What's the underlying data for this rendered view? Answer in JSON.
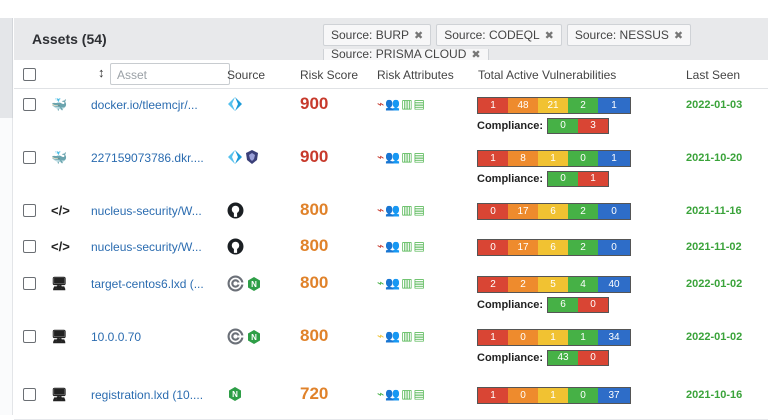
{
  "title": "Assets (54)",
  "filters": [
    "Source: BURP",
    "Source: CODEQL",
    "Source: NESSUS"
  ],
  "filter_clipped": "Source: PRISMA CLOUD",
  "columns": {
    "search_placeholder": "Asset",
    "source": "Source",
    "risk_score": "Risk Score",
    "risk_attributes": "Risk Attributes",
    "vulns": "Total Active Vulnerabilities",
    "last_seen": "Last Seen"
  },
  "compliance_label": "Compliance:",
  "rows": [
    {
      "type_icon": "docker-icon",
      "type_glyph": "🐳",
      "name": "docker.io/tleemcjr/...",
      "sources": [
        "prisma-icon"
      ],
      "score": "900",
      "score_color": "#c73a2c",
      "vulns": [
        "1",
        "48",
        "21",
        "2",
        "1"
      ],
      "compliance": [
        "0",
        "3"
      ],
      "date": "2022-01-03",
      "risk_color": "#c73a2c"
    },
    {
      "type_icon": "docker-icon",
      "type_glyph": "🐳",
      "name": "227159073786.dkr....",
      "sources": [
        "prisma-icon",
        "shield-icon"
      ],
      "score": "900",
      "score_color": "#c73a2c",
      "vulns": [
        "1",
        "8",
        "1",
        "0",
        "1"
      ],
      "compliance": [
        "0",
        "1"
      ],
      "date": "2021-10-20",
      "risk_color": "#c73a2c"
    },
    {
      "type_icon": "code-icon",
      "type_glyph": "</>",
      "name": "nucleus-security/W...",
      "sources": [
        "github-icon"
      ],
      "score": "800",
      "score_color": "#e0822a",
      "vulns": [
        "0",
        "17",
        "6",
        "2",
        "0"
      ],
      "compliance": null,
      "date": "2021-11-16",
      "risk_color": "#c73a2c"
    },
    {
      "type_icon": "code-icon",
      "type_glyph": "</>",
      "name": "nucleus-security/W...",
      "sources": [
        "github-icon"
      ],
      "score": "800",
      "score_color": "#e0822a",
      "vulns": [
        "0",
        "17",
        "6",
        "2",
        "0"
      ],
      "compliance": null,
      "date": "2021-11-02",
      "risk_color": "#c73a2c"
    },
    {
      "type_icon": "monitor-icon",
      "type_glyph": "🖥",
      "name": "target-centos6.lxd (...",
      "sources": [
        "tenable-icon",
        "nessus-icon"
      ],
      "score": "800",
      "score_color": "#e0822a",
      "vulns": [
        "2",
        "2",
        "5",
        "4",
        "40"
      ],
      "compliance": [
        "6",
        "0"
      ],
      "date": "2022-01-02",
      "risk_color": "#46b146"
    },
    {
      "type_icon": "monitor-icon",
      "type_glyph": "🖥",
      "name": "10.0.0.70",
      "sources": [
        "tenable-icon",
        "nessus-icon"
      ],
      "score": "800",
      "score_color": "#e0822a",
      "vulns": [
        "1",
        "0",
        "1",
        "1",
        "34"
      ],
      "compliance": [
        "43",
        "0"
      ],
      "date": "2022-01-02",
      "risk_color": "#f1c232"
    },
    {
      "type_icon": "monitor-icon",
      "type_glyph": "🖥",
      "name": "registration.lxd (10....",
      "sources": [
        "nessus-icon"
      ],
      "score": "720",
      "score_color": "#e0822a",
      "vulns": [
        "1",
        "0",
        "1",
        "0",
        "37"
      ],
      "compliance": null,
      "date": "2021-10-16",
      "risk_color": "#46b146"
    }
  ]
}
